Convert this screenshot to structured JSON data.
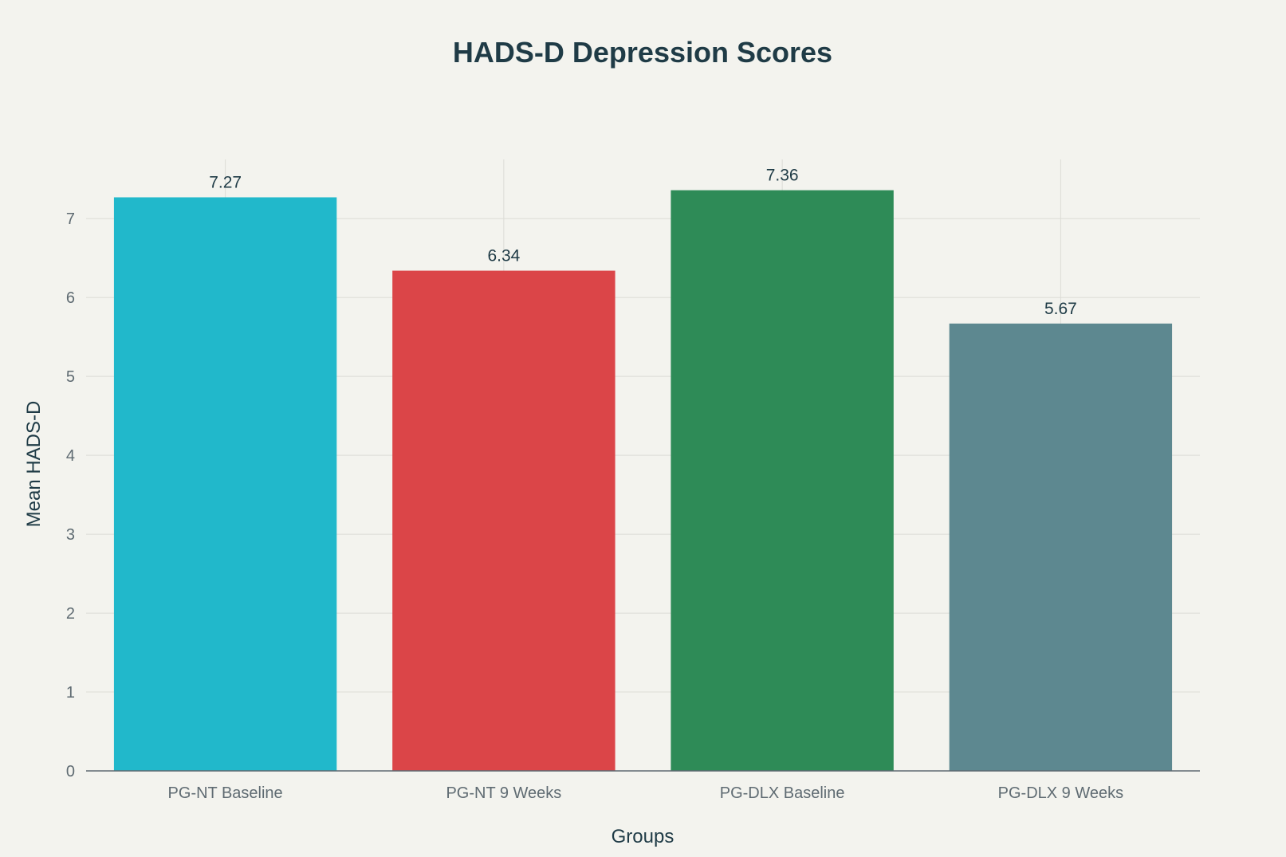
{
  "chart_data": {
    "type": "bar",
    "title": "HADS-D Depression Scores",
    "xlabel": "Groups",
    "ylabel": "Mean HADS-D",
    "categories": [
      "PG-NT Baseline",
      "PG-NT 9 Weeks",
      "PG-DLX Baseline",
      "PG-DLX 9 Weeks"
    ],
    "values": [
      7.27,
      6.34,
      7.36,
      5.67
    ],
    "value_labels": [
      "7.27",
      "6.34",
      "7.36",
      "5.67"
    ],
    "colors": [
      "#21b8cb",
      "#db4548",
      "#2e8b57",
      "#5d8890"
    ],
    "ylim": [
      0,
      7.75
    ],
    "yticks": [
      0,
      1,
      2,
      3,
      4,
      5,
      6,
      7
    ],
    "grid": true,
    "legend": "none"
  },
  "colors": {
    "background": "#f3f3ee",
    "gridline": "#dcdcd6",
    "axis_line": "#5f6b72",
    "title_text": "#1f3b46",
    "tick_text": "#5f6b72"
  }
}
